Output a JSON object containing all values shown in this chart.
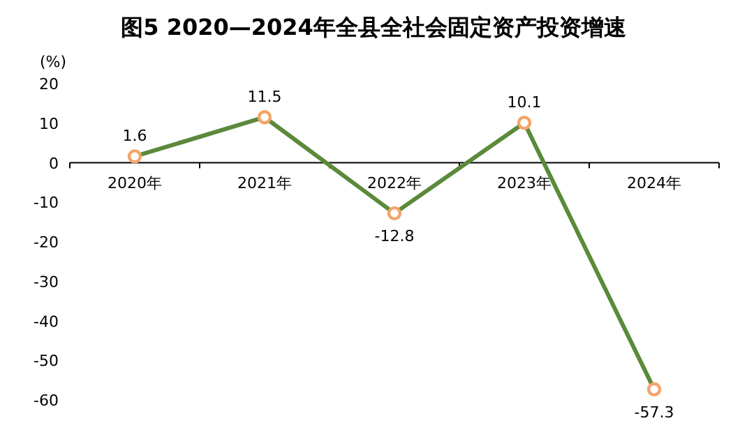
{
  "chart_data": {
    "type": "line",
    "title": "图5  2020—2024年全县全社会固定资产投资增速",
    "ylabel": "(%)",
    "categories": [
      "2020年",
      "2021年",
      "2022年",
      "2023年",
      "2024年"
    ],
    "series": [
      {
        "color": "#5b8a3a",
        "values": [
          1.6,
          11.5,
          -12.8,
          10.1,
          -57.3
        ]
      }
    ],
    "ylim": [
      -60,
      20
    ],
    "yticks": [
      20,
      10,
      0,
      -10,
      -20,
      -30,
      -40,
      -50,
      -60
    ],
    "data_labels": true,
    "marker": "circle",
    "line_style": "solid",
    "grid": false
  }
}
